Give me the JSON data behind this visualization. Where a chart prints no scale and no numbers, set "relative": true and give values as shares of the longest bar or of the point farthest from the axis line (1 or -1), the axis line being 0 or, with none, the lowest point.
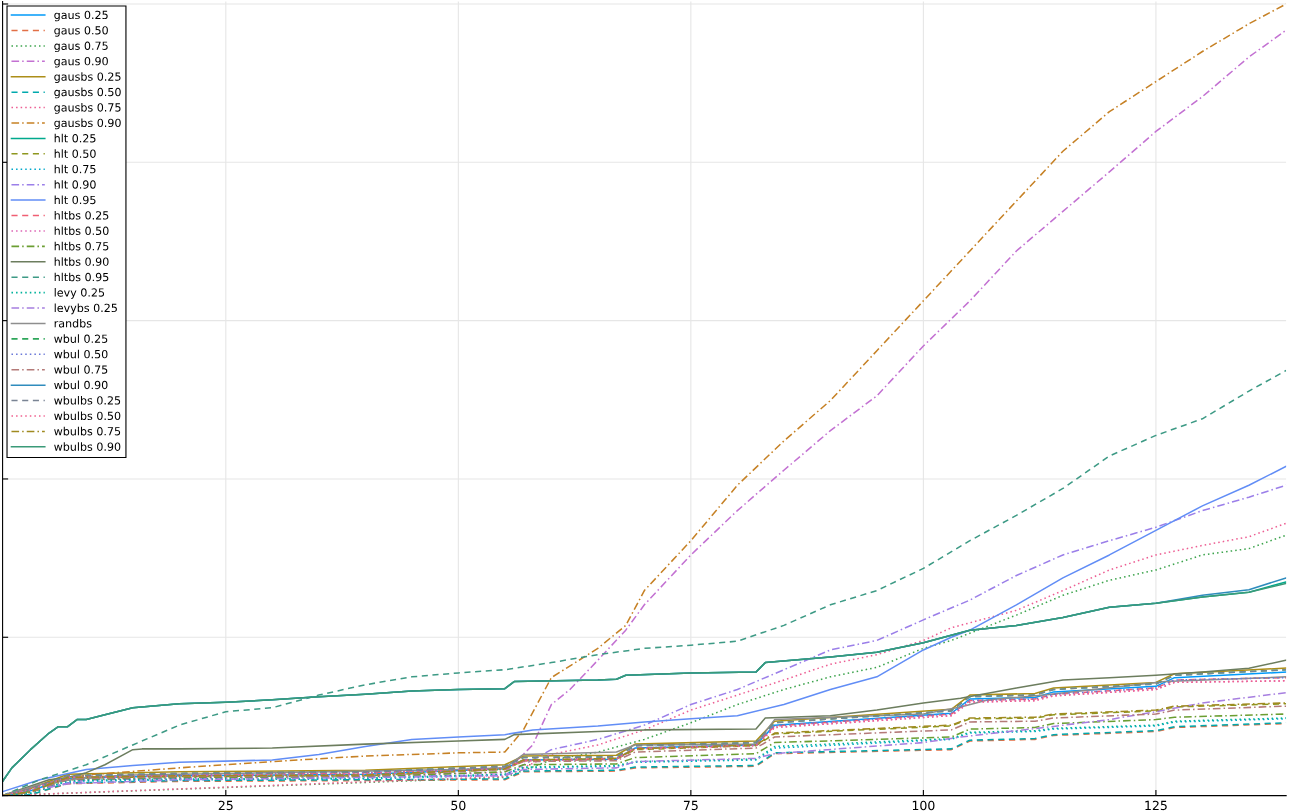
{
  "chart_data": {
    "type": "line",
    "relative": true,
    "xlim": [
      1,
      139
    ],
    "xticks": [
      25,
      50,
      75,
      100,
      125
    ],
    "grid": true,
    "legend": "top left",
    "tick_labels": "x",
    "series": [
      {
        "name": "gaus 0.25",
        "color": "#009af9",
        "line_style": "solid",
        "x": [
          1,
          4,
          8,
          20,
          40,
          55,
          57,
          67,
          69,
          82,
          84,
          103,
          105,
          112,
          114,
          125,
          127,
          139
        ],
        "values": [
          0,
          0.006,
          0.022,
          0.025,
          0.027,
          0.034,
          0.045,
          0.046,
          0.06,
          0.064,
          0.089,
          0.104,
          0.122,
          0.124,
          0.131,
          0.138,
          0.149,
          0.156
        ]
      },
      {
        "name": "gaus 0.50",
        "color": "#e26f46",
        "line_style": "dashed",
        "x": [
          1,
          4,
          8,
          20,
          40,
          55,
          57,
          67,
          69,
          82,
          84,
          103,
          105,
          112,
          114,
          125,
          127,
          139
        ],
        "values": [
          0,
          0.001,
          0.015,
          0.018,
          0.019,
          0.02,
          0.03,
          0.031,
          0.035,
          0.037,
          0.053,
          0.058,
          0.069,
          0.071,
          0.076,
          0.081,
          0.086,
          0.091
        ]
      },
      {
        "name": "gaus 0.75",
        "color": "#3da44d",
        "line_style": "dotted",
        "x": [
          1,
          55,
          60,
          65,
          70,
          75,
          80,
          85,
          90,
          95,
          100,
          103,
          110,
          115,
          120,
          125,
          130,
          135,
          139
        ],
        "values": [
          0,
          0.023,
          0.045,
          0.055,
          0.071,
          0.092,
          0.115,
          0.134,
          0.15,
          0.162,
          0.186,
          0.196,
          0.228,
          0.253,
          0.272,
          0.285,
          0.304,
          0.312,
          0.329
        ]
      },
      {
        "name": "gaus 0.90",
        "color": "#c371d2",
        "line_style": "dashdot",
        "x": [
          1,
          5,
          10,
          30,
          55,
          58,
          60,
          62,
          65,
          68,
          70,
          75,
          80,
          85,
          90,
          95,
          100,
          105,
          110,
          115,
          120,
          125,
          130,
          135,
          139
        ],
        "values": [
          0,
          0.008,
          0.02,
          0.024,
          0.029,
          0.064,
          0.115,
          0.134,
          0.171,
          0.209,
          0.241,
          0.304,
          0.36,
          0.411,
          0.461,
          0.505,
          0.568,
          0.625,
          0.688,
          0.738,
          0.788,
          0.839,
          0.883,
          0.933,
          0.967
        ]
      },
      {
        "name": "gausbs 0.25",
        "color": "#ac8e18",
        "line_style": "solid",
        "x": [
          1,
          4,
          8,
          20,
          40,
          55,
          57,
          67,
          69,
          82,
          84,
          103,
          105,
          112,
          114,
          125,
          127,
          139
        ],
        "values": [
          0,
          0.009,
          0.027,
          0.03,
          0.032,
          0.039,
          0.05,
          0.051,
          0.065,
          0.069,
          0.094,
          0.109,
          0.127,
          0.129,
          0.136,
          0.143,
          0.154,
          0.161
        ]
      },
      {
        "name": "gausbs 0.50",
        "color": "#00a9ad",
        "line_style": "dashed",
        "x": [
          1,
          4,
          8,
          20,
          40,
          55,
          57,
          67,
          69,
          82,
          84,
          103,
          105,
          112,
          114,
          125,
          127,
          139
        ],
        "values": [
          0,
          0.001,
          0.016,
          0.019,
          0.02,
          0.021,
          0.031,
          0.032,
          0.036,
          0.038,
          0.054,
          0.059,
          0.07,
          0.072,
          0.077,
          0.082,
          0.087,
          0.092
        ]
      },
      {
        "name": "gausbs 0.75",
        "color": "#ed5e93",
        "line_style": "dotted",
        "x": [
          1,
          55,
          60,
          65,
          70,
          75,
          80,
          85,
          90,
          95,
          100,
          103,
          110,
          115,
          120,
          125,
          130,
          135,
          139
        ],
        "values": [
          0,
          0.024,
          0.052,
          0.064,
          0.083,
          0.108,
          0.127,
          0.146,
          0.166,
          0.178,
          0.196,
          0.212,
          0.234,
          0.259,
          0.285,
          0.304,
          0.316,
          0.327,
          0.344
        ]
      },
      {
        "name": "gausbs 0.90",
        "color": "#c68125",
        "line_style": "dashdot",
        "x": [
          1,
          5,
          10,
          20,
          30,
          40,
          50,
          55,
          57,
          60,
          65,
          68,
          70,
          75,
          80,
          85,
          90,
          95,
          100,
          105,
          110,
          115,
          120,
          125,
          130,
          135,
          139
        ],
        "values": [
          0,
          0.014,
          0.026,
          0.035,
          0.043,
          0.05,
          0.054,
          0.055,
          0.083,
          0.149,
          0.186,
          0.215,
          0.259,
          0.322,
          0.392,
          0.448,
          0.499,
          0.562,
          0.625,
          0.688,
          0.751,
          0.814,
          0.864,
          0.902,
          0.94,
          0.975,
          1
        ]
      },
      {
        "name": "hlt 0.25",
        "color": "#00a98d",
        "line_style": "solid",
        "x": [
          1,
          2,
          4,
          6,
          7,
          8,
          9,
          10,
          12,
          15,
          20,
          25,
          30,
          35,
          40,
          45,
          50,
          55,
          56,
          65,
          67,
          68,
          75,
          82,
          83,
          90,
          95,
          100,
          105,
          110,
          115,
          120,
          125,
          130,
          135,
          139
        ],
        "values": [
          0.018,
          0.035,
          0.058,
          0.079,
          0.087,
          0.087,
          0.096,
          0.096,
          0.102,
          0.111,
          0.116,
          0.118,
          0.121,
          0.125,
          0.128,
          0.132,
          0.134,
          0.135,
          0.144,
          0.146,
          0.147,
          0.152,
          0.155,
          0.156,
          0.168,
          0.175,
          0.181,
          0.193,
          0.209,
          0.215,
          0.225,
          0.238,
          0.243,
          0.251,
          0.257,
          0.27
        ]
      },
      {
        "name": "hlt 0.50",
        "color": "#8e971e",
        "line_style": "dashed",
        "x": [
          1,
          4,
          8,
          20,
          40,
          55,
          57,
          67,
          69,
          82,
          84,
          103,
          105,
          112,
          114,
          125,
          127,
          139
        ],
        "values": [
          0,
          0.005,
          0.022,
          0.024,
          0.025,
          0.033,
          0.044,
          0.046,
          0.058,
          0.063,
          0.078,
          0.088,
          0.097,
          0.098,
          0.102,
          0.107,
          0.112,
          0.116
        ]
      },
      {
        "name": "hlt 0.75",
        "color": "#00a8cb",
        "line_style": "dotted",
        "x": [
          1,
          4,
          8,
          20,
          40,
          55,
          57,
          67,
          69,
          82,
          84,
          103,
          105,
          112,
          114,
          125,
          127,
          139
        ],
        "values": [
          0,
          0.003,
          0.018,
          0.02,
          0.021,
          0.026,
          0.035,
          0.037,
          0.042,
          0.045,
          0.06,
          0.071,
          0.079,
          0.081,
          0.084,
          0.088,
          0.093,
          0.097
        ]
      },
      {
        "name": "hlt 0.90",
        "color": "#9b7fe9",
        "line_style": "dashdot",
        "x": [
          1,
          10,
          30,
          55,
          60,
          65,
          70,
          75,
          80,
          85,
          90,
          95,
          100,
          105,
          110,
          115,
          120,
          125,
          130,
          135,
          139
        ],
        "values": [
          0,
          0.02,
          0.023,
          0.026,
          0.058,
          0.071,
          0.089,
          0.115,
          0.134,
          0.159,
          0.184,
          0.196,
          0.222,
          0.247,
          0.278,
          0.304,
          0.322,
          0.339,
          0.36,
          0.377,
          0.392
        ]
      },
      {
        "name": "hlt 0.95",
        "color": "#618df6",
        "line_style": "solid",
        "x": [
          1,
          5,
          10,
          15,
          20,
          30,
          35,
          40,
          45,
          50,
          55,
          58,
          65,
          70,
          75,
          80,
          85,
          90,
          95,
          100,
          103,
          105,
          110,
          115,
          120,
          125,
          130,
          135,
          139
        ],
        "values": [
          0.005,
          0.02,
          0.033,
          0.038,
          0.042,
          0.045,
          0.052,
          0.062,
          0.071,
          0.074,
          0.077,
          0.083,
          0.088,
          0.093,
          0.097,
          0.101,
          0.115,
          0.134,
          0.15,
          0.184,
          0.2,
          0.209,
          0.241,
          0.275,
          0.304,
          0.335,
          0.366,
          0.392,
          0.416
        ]
      },
      {
        "name": "hltbs 0.25",
        "color": "#f05f73",
        "line_style": "dashed",
        "x": [
          1,
          4,
          8,
          20,
          40,
          55,
          57,
          67,
          69,
          82,
          84,
          103,
          105,
          112,
          114,
          125,
          127,
          139
        ],
        "values": [
          0,
          0.008,
          0.024,
          0.026,
          0.029,
          0.035,
          0.045,
          0.047,
          0.06,
          0.064,
          0.088,
          0.103,
          0.12,
          0.122,
          0.128,
          0.136,
          0.146,
          0.149
        ]
      },
      {
        "name": "hltbs 0.50",
        "color": "#dd64b5",
        "line_style": "dotted",
        "x": [
          1,
          4,
          8,
          20,
          40,
          55,
          57,
          67,
          69,
          82,
          84,
          103,
          105,
          112,
          114,
          125,
          127,
          139
        ],
        "values": [
          0,
          0.008,
          0.023,
          0.025,
          0.028,
          0.034,
          0.044,
          0.046,
          0.059,
          0.063,
          0.086,
          0.101,
          0.118,
          0.12,
          0.126,
          0.134,
          0.143,
          0.145
        ]
      },
      {
        "name": "hltbs 0.75",
        "color": "#6b9e32",
        "line_style": "dashdot",
        "x": [
          1,
          4,
          8,
          20,
          40,
          55,
          57,
          67,
          69,
          82,
          84,
          103,
          105,
          112,
          114,
          125,
          127,
          139
        ],
        "values": [
          0,
          0.004,
          0.02,
          0.023,
          0.024,
          0.03,
          0.039,
          0.04,
          0.048,
          0.053,
          0.067,
          0.074,
          0.084,
          0.086,
          0.091,
          0.096,
          0.099,
          0.103
        ]
      },
      {
        "name": "hltbs 0.90",
        "color": "#6c7d5e",
        "line_style": "solid",
        "x": [
          1,
          3,
          6,
          8,
          10,
          12,
          15,
          16,
          20,
          30,
          40,
          50,
          55,
          56,
          65,
          70,
          82,
          83,
          90,
          95,
          100,
          104,
          110,
          115,
          120,
          125,
          130,
          135,
          139
        ],
        "values": [
          0,
          0.008,
          0.02,
          0.023,
          0.029,
          0.039,
          0.058,
          0.059,
          0.059,
          0.06,
          0.065,
          0.069,
          0.071,
          0.077,
          0.081,
          0.083,
          0.084,
          0.098,
          0.101,
          0.108,
          0.117,
          0.123,
          0.136,
          0.146,
          0.149,
          0.152,
          0.156,
          0.161,
          0.171
        ]
      },
      {
        "name": "hltbs 0.95",
        "color": "#3d9a85",
        "line_style": "dashed",
        "x": [
          1,
          5,
          10,
          15,
          20,
          25,
          30,
          35,
          40,
          45,
          50,
          55,
          60,
          65,
          70,
          75,
          80,
          85,
          90,
          95,
          100,
          105,
          110,
          115,
          120,
          125,
          130,
          135,
          139
        ],
        "values": [
          0,
          0.02,
          0.039,
          0.064,
          0.089,
          0.106,
          0.111,
          0.127,
          0.14,
          0.15,
          0.155,
          0.159,
          0.168,
          0.178,
          0.186,
          0.19,
          0.195,
          0.215,
          0.241,
          0.259,
          0.287,
          0.322,
          0.354,
          0.388,
          0.429,
          0.455,
          0.476,
          0.511,
          0.537
        ]
      },
      {
        "name": "levy 0.25",
        "color": "#00b29b",
        "line_style": "dotted",
        "x": [
          1,
          4,
          8,
          20,
          40,
          55,
          57,
          67,
          69,
          82,
          84,
          103,
          105,
          112,
          114,
          125,
          127,
          139
        ],
        "values": [
          0,
          0.003,
          0.019,
          0.021,
          0.022,
          0.027,
          0.036,
          0.038,
          0.043,
          0.046,
          0.062,
          0.072,
          0.08,
          0.082,
          0.085,
          0.089,
          0.094,
          0.098
        ]
      },
      {
        "name": "levybs 0.25",
        "color": "#a77fe0",
        "line_style": "dashdot",
        "x": [
          1,
          8,
          20,
          55,
          57,
          67,
          69,
          82,
          84,
          100,
          104,
          113,
          120,
          125,
          130,
          139
        ],
        "values": [
          0,
          0.015,
          0.02,
          0.025,
          0.033,
          0.035,
          0.043,
          0.047,
          0.053,
          0.067,
          0.074,
          0.086,
          0.096,
          0.106,
          0.117,
          0.13
        ]
      },
      {
        "name": "randbs",
        "color": "#8e8e8e",
        "line_style": "solid",
        "x": [
          1,
          5,
          10,
          15,
          30,
          50,
          55,
          57,
          67,
          69,
          82,
          84,
          100,
          104,
          107,
          113,
          126,
          139
        ],
        "values": [
          0,
          0.014,
          0.023,
          0.026,
          0.029,
          0.033,
          0.035,
          0.052,
          0.055,
          0.064,
          0.065,
          0.096,
          0.103,
          0.112,
          0.121,
          0.127,
          0.144,
          0.15
        ]
      },
      {
        "name": "wbul 0.25",
        "color": "#2ea65a",
        "line_style": "dashed",
        "x": [
          1,
          4,
          8,
          20,
          40,
          55,
          57,
          67,
          69,
          82,
          84,
          103,
          105,
          112,
          114,
          125,
          127,
          139
        ],
        "values": [
          0,
          0.008,
          0.025,
          0.028,
          0.03,
          0.037,
          0.048,
          0.049,
          0.063,
          0.067,
          0.092,
          0.107,
          0.125,
          0.127,
          0.134,
          0.141,
          0.152,
          0.159
        ]
      },
      {
        "name": "wbul 0.50",
        "color": "#6a78d8",
        "line_style": "dotted",
        "x": [
          1,
          4,
          8,
          20,
          40,
          55,
          57,
          67,
          69,
          82,
          84,
          103,
          105,
          112,
          114,
          125,
          127,
          139
        ],
        "values": [
          0,
          0.008,
          0.024,
          0.026,
          0.029,
          0.035,
          0.045,
          0.047,
          0.06,
          0.064,
          0.088,
          0.103,
          0.12,
          0.122,
          0.128,
          0.136,
          0.146,
          0.149
        ]
      },
      {
        "name": "wbul 0.75",
        "color": "#b47a78",
        "line_style": "dashdot",
        "x": [
          1,
          4,
          8,
          20,
          40,
          55,
          57,
          67,
          69,
          82,
          84,
          103,
          105,
          112,
          114,
          125,
          127,
          139
        ],
        "values": [
          0,
          0.004,
          0.021,
          0.024,
          0.025,
          0.033,
          0.043,
          0.044,
          0.055,
          0.06,
          0.074,
          0.083,
          0.093,
          0.094,
          0.098,
          0.103,
          0.108,
          0.113
        ]
      },
      {
        "name": "wbul 0.90",
        "color": "#2f8cbd",
        "line_style": "solid",
        "x": [
          1,
          2,
          4,
          6,
          7,
          8,
          9,
          10,
          12,
          15,
          20,
          25,
          30,
          35,
          40,
          45,
          50,
          55,
          56,
          65,
          67,
          68,
          75,
          82,
          83,
          90,
          95,
          100,
          105,
          110,
          115,
          120,
          125,
          130,
          135,
          139
        ],
        "values": [
          0.018,
          0.035,
          0.058,
          0.079,
          0.087,
          0.087,
          0.096,
          0.096,
          0.102,
          0.111,
          0.116,
          0.118,
          0.121,
          0.125,
          0.128,
          0.132,
          0.134,
          0.135,
          0.144,
          0.146,
          0.147,
          0.152,
          0.155,
          0.156,
          0.168,
          0.175,
          0.181,
          0.193,
          0.209,
          0.215,
          0.225,
          0.238,
          0.243,
          0.253,
          0.26,
          0.275
        ]
      },
      {
        "name": "wbulbs 0.25",
        "color": "#7a8494",
        "line_style": "dashed",
        "x": [
          1,
          4,
          8,
          20,
          40,
          55,
          57,
          67,
          69,
          82,
          84,
          103,
          105,
          112,
          114,
          125,
          127,
          139
        ],
        "values": [
          0,
          0.008,
          0.025,
          0.028,
          0.03,
          0.037,
          0.048,
          0.049,
          0.063,
          0.067,
          0.092,
          0.107,
          0.125,
          0.127,
          0.134,
          0.141,
          0.152,
          0.159
        ]
      },
      {
        "name": "wbulbs 0.50",
        "color": "#f0608f",
        "line_style": "dotted",
        "x": [
          1,
          4,
          8,
          20,
          40,
          55,
          57,
          67,
          69,
          82,
          84,
          103,
          105,
          112,
          114,
          125,
          127,
          139
        ],
        "values": [
          0,
          0.008,
          0.023,
          0.025,
          0.028,
          0.034,
          0.044,
          0.046,
          0.059,
          0.063,
          0.086,
          0.101,
          0.118,
          0.12,
          0.126,
          0.134,
          0.143,
          0.145
        ]
      },
      {
        "name": "wbulbs 0.75",
        "color": "#a08a20",
        "line_style": "dashdot",
        "x": [
          1,
          4,
          8,
          20,
          40,
          55,
          57,
          67,
          69,
          82,
          84,
          103,
          105,
          112,
          114,
          125,
          127,
          139
        ],
        "values": [
          0,
          0.005,
          0.023,
          0.025,
          0.026,
          0.034,
          0.045,
          0.047,
          0.059,
          0.064,
          0.079,
          0.089,
          0.098,
          0.099,
          0.103,
          0.108,
          0.113,
          0.117
        ]
      },
      {
        "name": "wbulbs 0.90",
        "color": "#3a9a78",
        "line_style": "solid",
        "x": [
          1,
          2,
          4,
          6,
          7,
          8,
          9,
          10,
          12,
          15,
          20,
          25,
          30,
          35,
          40,
          45,
          50,
          55,
          56,
          65,
          67,
          68,
          75,
          82,
          83,
          90,
          95,
          100,
          105,
          110,
          115,
          120,
          125,
          130,
          135,
          139
        ],
        "values": [
          0.018,
          0.035,
          0.058,
          0.079,
          0.087,
          0.087,
          0.096,
          0.096,
          0.102,
          0.111,
          0.116,
          0.118,
          0.121,
          0.125,
          0.128,
          0.132,
          0.134,
          0.135,
          0.144,
          0.146,
          0.147,
          0.152,
          0.155,
          0.156,
          0.168,
          0.175,
          0.181,
          0.193,
          0.209,
          0.215,
          0.225,
          0.238,
          0.243,
          0.251,
          0.257,
          0.268
        ]
      }
    ]
  }
}
